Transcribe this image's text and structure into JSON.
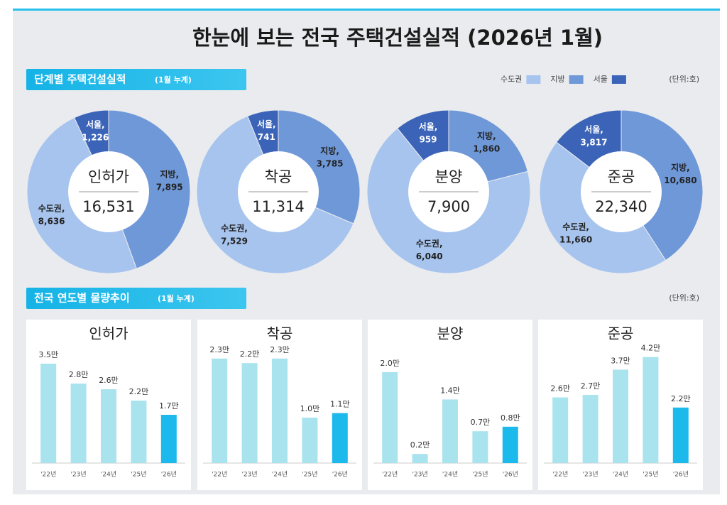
{
  "title": "한눈에 보는 전국 주택건설실적  (2026년 1월)",
  "section1": {
    "label": "단계별 주택건설실적",
    "note": "(1월 누계)"
  },
  "section2": {
    "label": "전국 연도별 물량추이",
    "note": "(1월 누계)"
  },
  "unit": "(단위:호)",
  "legend": [
    {
      "name": "수도권",
      "color": "#a7c4ee"
    },
    {
      "name": "지방",
      "color": "#6f98d8"
    },
    {
      "name": "서울",
      "color": "#3b64b9"
    }
  ],
  "chart_data": [
    {
      "type": "donut",
      "title": "인허가",
      "categories": [
        "지방,",
        "수도권,",
        "서울,"
      ],
      "values": [
        7895,
        8636,
        1226
      ],
      "value_labels": [
        "7,895",
        "8,636",
        "1,226"
      ],
      "colors": [
        "#6f98d8",
        "#a7c4ee",
        "#3b64b9"
      ],
      "total": {
        "value": 16531,
        "label": "16,531"
      }
    },
    {
      "type": "donut",
      "title": "착공",
      "categories": [
        "지방,",
        "수도권,",
        "서울,"
      ],
      "values": [
        3785,
        7529,
        741
      ],
      "value_labels": [
        "3,785",
        "7,529",
        "741"
      ],
      "colors": [
        "#6f98d8",
        "#a7c4ee",
        "#3b64b9"
      ],
      "total": {
        "value": 11314,
        "label": "11,314"
      }
    },
    {
      "type": "donut",
      "title": "분양",
      "categories": [
        "지방,",
        "수도권,",
        "서울,"
      ],
      "values": [
        1860,
        6040,
        959
      ],
      "value_labels": [
        "1,860",
        "6,040",
        "959"
      ],
      "colors": [
        "#6f98d8",
        "#a7c4ee",
        "#3b64b9"
      ],
      "total": {
        "value": 7900,
        "label": "7,900"
      }
    },
    {
      "type": "donut",
      "title": "준공",
      "categories": [
        "지방,",
        "수도권,",
        "서울,"
      ],
      "values": [
        10680,
        11660,
        3817
      ],
      "value_labels": [
        "10,680",
        "11,660",
        "3,817"
      ],
      "colors": [
        "#6f98d8",
        "#a7c4ee",
        "#3b64b9"
      ],
      "total": {
        "value": 22340,
        "label": "22,340"
      }
    },
    {
      "type": "bar",
      "title": "인허가",
      "categories": [
        "'22년",
        "'23년",
        "'24년",
        "'25년",
        "'26년"
      ],
      "values": [
        3.5,
        2.8,
        2.6,
        2.2,
        1.7
      ],
      "value_labels": [
        "3.5만",
        "2.8만",
        "2.6만",
        "2.2만",
        "1.7만"
      ],
      "colors": [
        "#a8e3ee",
        "#a8e3ee",
        "#a8e3ee",
        "#a8e3ee",
        "#1cb9ec"
      ],
      "ylim": [
        0,
        4
      ]
    },
    {
      "type": "bar",
      "title": "착공",
      "categories": [
        "'22년",
        "'23년",
        "'24년",
        "'25년",
        "'26년"
      ],
      "values": [
        2.3,
        2.2,
        2.3,
        1.0,
        1.1
      ],
      "value_labels": [
        "2.3만",
        "2.2만",
        "2.3만",
        "1.0만",
        "1.1만"
      ],
      "colors": [
        "#a8e3ee",
        "#a8e3ee",
        "#a8e3ee",
        "#a8e3ee",
        "#1cb9ec"
      ],
      "ylim": [
        0,
        2.5
      ]
    },
    {
      "type": "bar",
      "title": "분양",
      "categories": [
        "'22년",
        "'23년",
        "'24년",
        "'25년",
        "'26년"
      ],
      "values": [
        2.0,
        0.2,
        1.4,
        0.7,
        0.8
      ],
      "value_labels": [
        "2.0만",
        "0.2만",
        "1.4만",
        "0.7만",
        "0.8만"
      ],
      "colors": [
        "#a8e3ee",
        "#a8e3ee",
        "#a8e3ee",
        "#a8e3ee",
        "#1cb9ec"
      ],
      "ylim": [
        0,
        2.5
      ]
    },
    {
      "type": "bar",
      "title": "준공",
      "categories": [
        "'22년",
        "'23년",
        "'24년",
        "'25년",
        "'26년"
      ],
      "values": [
        2.6,
        2.7,
        3.7,
        4.2,
        2.2
      ],
      "value_labels": [
        "2.6만",
        "2.7만",
        "3.7만",
        "4.2만",
        "2.2만"
      ],
      "colors": [
        "#a8e3ee",
        "#a8e3ee",
        "#a8e3ee",
        "#a8e3ee",
        "#1cb9ec"
      ],
      "ylim": [
        0,
        4.5
      ]
    }
  ]
}
